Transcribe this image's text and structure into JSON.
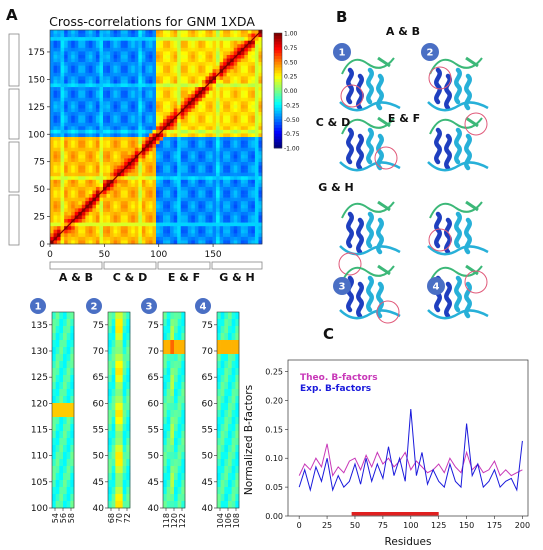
{
  "panel_letters": {
    "a": "A",
    "b": "B",
    "c": "C"
  },
  "colors": {
    "theo": "#c838b8",
    "exp": "#1a1adc",
    "bar": "#e02020",
    "badge": "#4a6fc4",
    "protein_dark": "#1f3fbf",
    "protein_mid": "#27b0d8",
    "protein_green": "#3cb878",
    "circle": "#e05a7a"
  },
  "colormap_name": "jet",
  "heatmap": {
    "title": "Cross-correlations for GNM 1XDA",
    "x_ticks": [
      "0",
      "50",
      "100",
      "150"
    ],
    "y_ticks": [
      "0",
      "25",
      "50",
      "75",
      "100",
      "125",
      "150",
      "175"
    ],
    "colorbar_ticks": [
      "1.00",
      "0.75",
      "0.50",
      "0.25",
      "0.00",
      "-0.25",
      "-0.50",
      "-0.75",
      "-1.00"
    ],
    "group_labels": [
      "A & B",
      "C & D",
      "E & F",
      "G & H"
    ]
  },
  "zooms": [
    {
      "badge": "1",
      "y_ticks": [
        "100",
        "105",
        "110",
        "115",
        "120",
        "125",
        "130",
        "135"
      ],
      "x_ticks": [
        "54",
        "56",
        "58"
      ]
    },
    {
      "badge": "2",
      "y_ticks": [
        "40",
        "45",
        "50",
        "55",
        "60",
        "65",
        "70",
        "75"
      ],
      "x_ticks": [
        "68",
        "70",
        "72"
      ]
    },
    {
      "badge": "3",
      "y_ticks": [
        "40",
        "45",
        "50",
        "55",
        "60",
        "65",
        "70",
        "75"
      ],
      "x_ticks": [
        "118",
        "120",
        "122"
      ]
    },
    {
      "badge": "4",
      "y_ticks": [
        "40",
        "45",
        "50",
        "55",
        "60",
        "65",
        "70",
        "75"
      ],
      "x_ticks": [
        "104",
        "106",
        "108"
      ]
    }
  ],
  "structures": {
    "labels": [
      "A & B",
      "C & D",
      "E & F",
      "G & H"
    ],
    "badges": [
      "1",
      "2",
      "3",
      "4"
    ]
  },
  "chart_data": {
    "type": "line",
    "ylabel": "Normalized B-factors",
    "xlabel": "Residues",
    "xlim": [
      -10,
      205
    ],
    "ylim": [
      0.0,
      0.27
    ],
    "x_ticks": [
      "0",
      "25",
      "50",
      "75",
      "100",
      "125",
      "150",
      "175",
      "200"
    ],
    "y_ticks": [
      "0.00",
      "0.05",
      "0.10",
      "0.15",
      "0.20",
      "0.25"
    ],
    "highlight_range": [
      47,
      125
    ],
    "series": [
      {
        "name": "Theo. B-factors",
        "x": [
          0,
          5,
          10,
          15,
          20,
          25,
          30,
          35,
          40,
          45,
          50,
          55,
          60,
          65,
          70,
          75,
          80,
          85,
          90,
          95,
          100,
          105,
          110,
          115,
          120,
          125,
          130,
          135,
          140,
          145,
          150,
          155,
          160,
          165,
          170,
          175,
          180,
          185,
          190,
          195,
          200
        ],
        "values": [
          0.07,
          0.09,
          0.08,
          0.1,
          0.085,
          0.125,
          0.07,
          0.085,
          0.075,
          0.095,
          0.1,
          0.08,
          0.105,
          0.085,
          0.11,
          0.09,
          0.1,
          0.085,
          0.095,
          0.11,
          0.08,
          0.095,
          0.085,
          0.075,
          0.08,
          0.09,
          0.075,
          0.1,
          0.085,
          0.075,
          0.11,
          0.08,
          0.09,
          0.075,
          0.08,
          0.095,
          0.07,
          0.08,
          0.07,
          0.075,
          0.08
        ]
      },
      {
        "name": "Exp. B-factors",
        "x": [
          0,
          5,
          10,
          15,
          20,
          25,
          30,
          35,
          40,
          45,
          50,
          55,
          60,
          65,
          70,
          75,
          80,
          85,
          90,
          95,
          100,
          105,
          110,
          115,
          120,
          125,
          130,
          135,
          140,
          145,
          150,
          155,
          160,
          165,
          170,
          175,
          180,
          185,
          190,
          195,
          200
        ],
        "values": [
          0.05,
          0.08,
          0.045,
          0.085,
          0.06,
          0.1,
          0.045,
          0.07,
          0.05,
          0.06,
          0.09,
          0.055,
          0.1,
          0.06,
          0.09,
          0.065,
          0.12,
          0.07,
          0.1,
          0.06,
          0.185,
          0.07,
          0.11,
          0.055,
          0.08,
          0.06,
          0.05,
          0.09,
          0.06,
          0.05,
          0.16,
          0.07,
          0.09,
          0.05,
          0.06,
          0.08,
          0.05,
          0.06,
          0.065,
          0.045,
          0.13
        ]
      }
    ]
  }
}
